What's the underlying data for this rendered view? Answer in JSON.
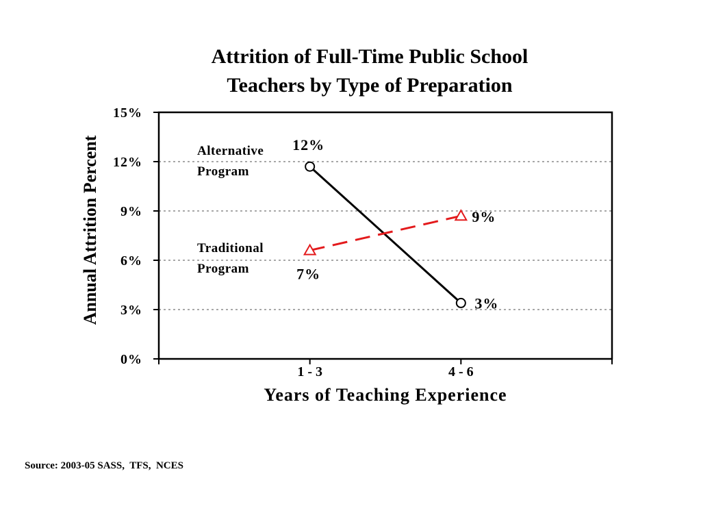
{
  "chart_data": {
    "type": "line",
    "title_line1": "Attrition of Full-Time Public School",
    "title_line2": "Teachers by Type of Preparation",
    "xlabel": "Years  of Teaching Experience",
    "ylabel": "Annual Attrition Percent",
    "categories": [
      "1 - 3",
      "4 - 6"
    ],
    "x_extent": [
      0,
      3
    ],
    "x_positions": [
      1,
      2
    ],
    "ylim": [
      0,
      15
    ],
    "yticks": [
      0,
      3,
      6,
      9,
      12,
      15
    ],
    "ytick_labels": [
      "0%",
      "3%",
      "6%",
      "9%",
      "12%",
      "15%"
    ],
    "grid": "horizontal dotted",
    "series": [
      {
        "name_line1": "Alternative",
        "name_line2": "Program",
        "values": [
          11.7,
          3.4
        ],
        "value_labels": [
          "12%",
          "3%"
        ],
        "color": "#000000",
        "marker": "circle",
        "line_style": "solid"
      },
      {
        "name_line1": "Traditional",
        "name_line2": "Program",
        "values": [
          6.6,
          8.7
        ],
        "value_labels": [
          "7%",
          "9%"
        ],
        "color": "#e31a1c",
        "marker": "triangle",
        "line_style": "dashed"
      }
    ]
  },
  "source": "Source: 2003-05 SASS,  TFS,  NCES"
}
